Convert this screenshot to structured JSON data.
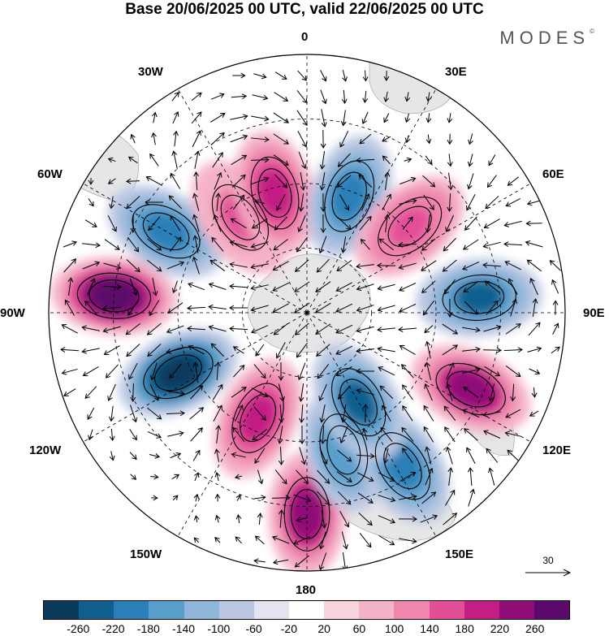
{
  "title": "Base 20/06/2025 00 UTC, valid 22/06/2025 00 UTC",
  "brand": "MODES",
  "brand_mark": "©",
  "longitude_labels": {
    "top": "0",
    "e30": "30E",
    "e60": "60E",
    "e90": "90E",
    "e120": "120E",
    "e150": "150E",
    "bottom": "180",
    "w150": "150W",
    "w120": "120W",
    "w90": "90W",
    "w60": "60W",
    "w30": "30W"
  },
  "reference_vector": {
    "label": "30"
  },
  "colorbar": {
    "colors": [
      "#0b3a5c",
      "#115f8f",
      "#2a7fb8",
      "#5a9fcb",
      "#8fb5d9",
      "#bcc8e3",
      "#e4e4f1",
      "#ffffff",
      "#f7d4dc",
      "#f5b3c7",
      "#ee86ae",
      "#e24f97",
      "#c21e84",
      "#8f0e78",
      "#5b0a6b"
    ],
    "labels": [
      "-260",
      "-220",
      "-180",
      "-140",
      "-100",
      "-60",
      "-20",
      "20",
      "60",
      "100",
      "140",
      "180",
      "220",
      "260"
    ]
  },
  "map": {
    "projection": "south polar stereographic",
    "anomaly_centers": [
      {
        "lon": 180,
        "lat_ring": 0.78,
        "value": 200
      },
      {
        "lon": 165,
        "lat_ring": 0.55,
        "value": -150
      },
      {
        "lon": 205,
        "lat_ring": 0.45,
        "value": 150
      },
      {
        "lon": 245,
        "lat_ring": 0.55,
        "value": -260
      },
      {
        "lon": 275,
        "lat_ring": 0.75,
        "value": 260
      },
      {
        "lon": 300,
        "lat_ring": 0.63,
        "value": -160
      },
      {
        "lon": 325,
        "lat_ring": 0.45,
        "value": 130
      },
      {
        "lon": 345,
        "lat_ring": 0.48,
        "value": 170
      },
      {
        "lon": 20,
        "lat_ring": 0.48,
        "value": -180
      },
      {
        "lon": 50,
        "lat_ring": 0.52,
        "value": 140
      },
      {
        "lon": 85,
        "lat_ring": 0.67,
        "value": -200
      },
      {
        "lon": 115,
        "lat_ring": 0.7,
        "value": 200
      },
      {
        "lon": 148,
        "lat_ring": 0.7,
        "value": -180
      },
      {
        "lon": 150,
        "lat_ring": 0.4,
        "value": -200
      }
    ]
  }
}
